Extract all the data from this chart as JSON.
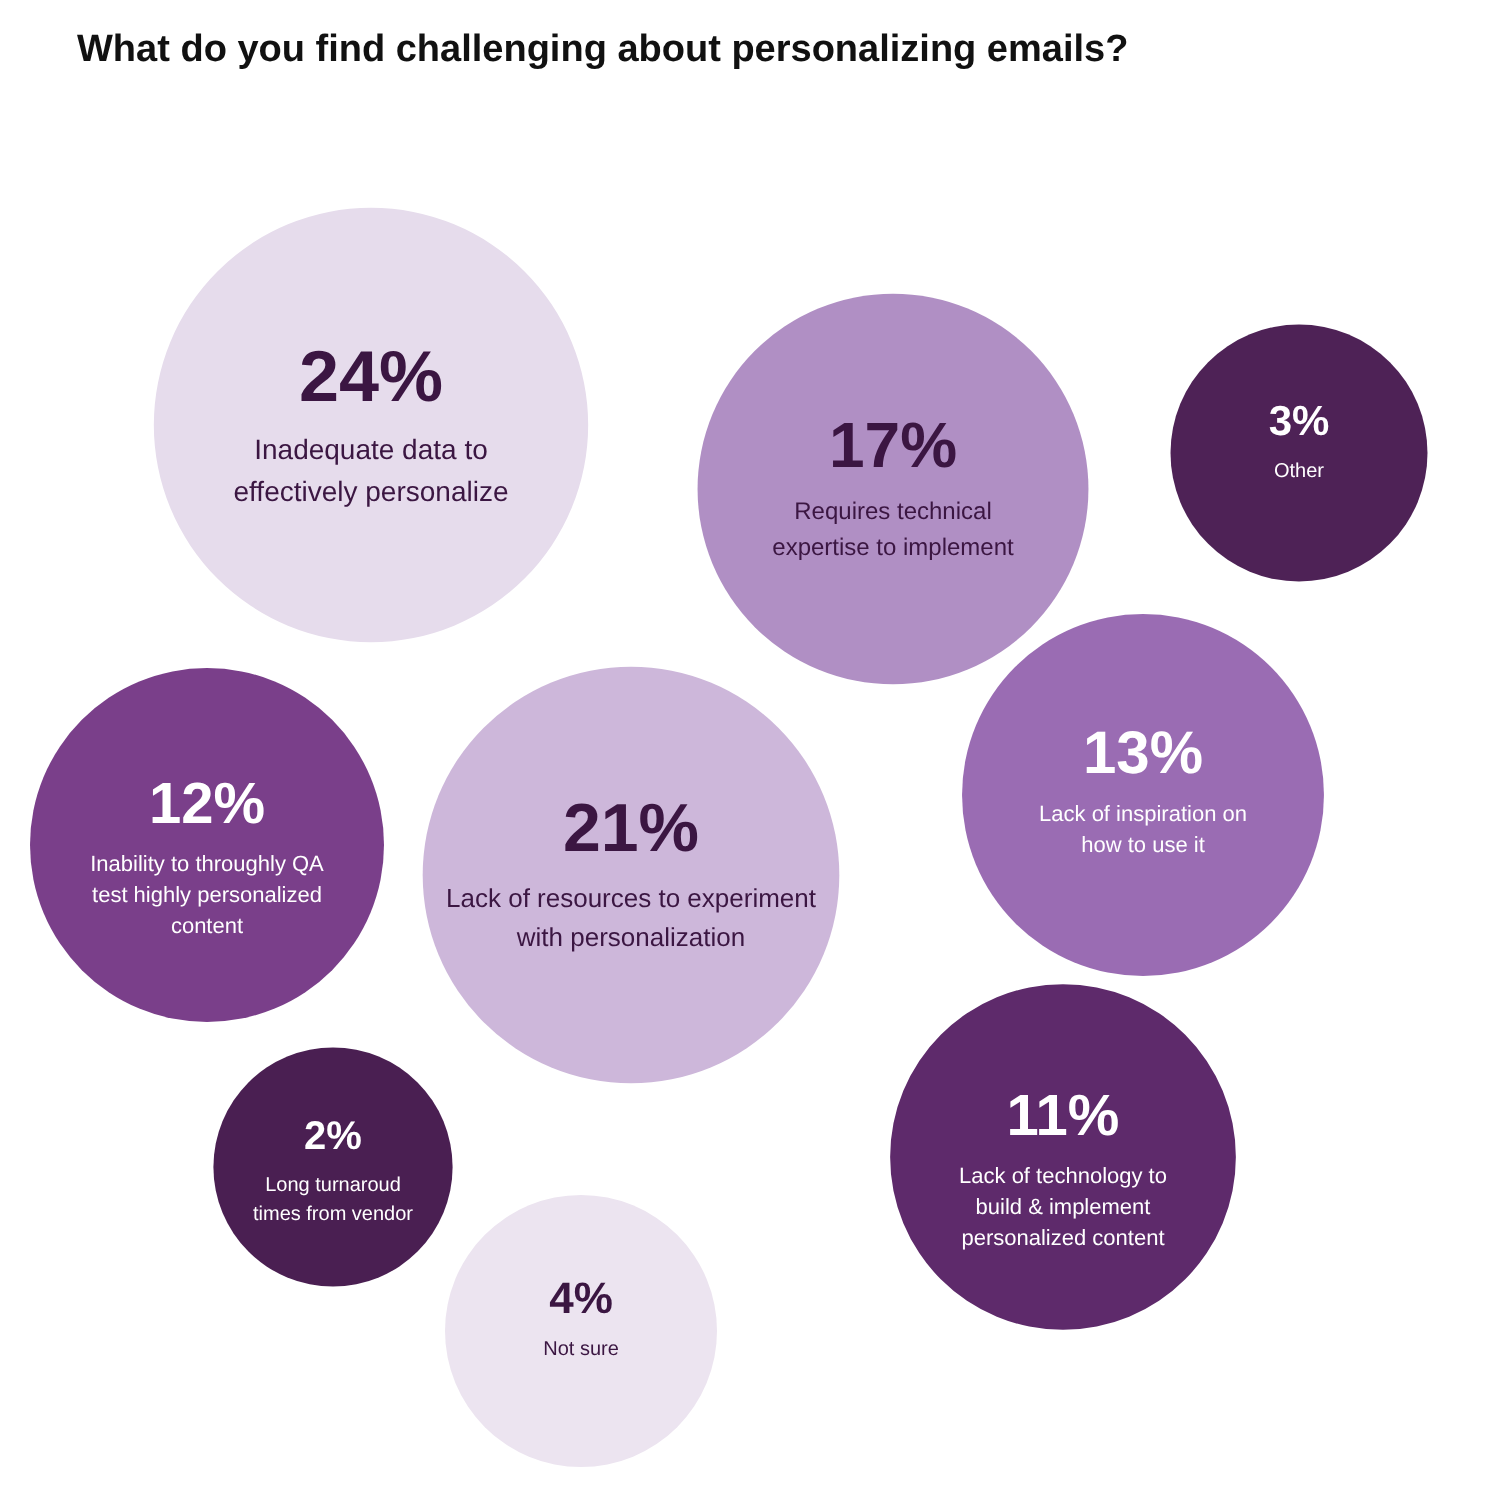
{
  "chart_data": {
    "type": "other",
    "title": "What do you find challenging about personalizing emails?",
    "categories": [
      "Inadequate data to\neffectively personalize",
      "Requires technical\nexpertise to implement",
      "Other",
      "Lack of inspiration on\nhow to use it",
      "Inability to throughly QA\ntest highly personalized\ncontent",
      "Lack of resources to experiment\nwith personalization",
      "Long turnaroud\ntimes from vendor",
      "Lack of technology to\nbuild & implement\npersonalized content",
      "Not sure"
    ],
    "values": [
      24,
      17,
      3,
      13,
      12,
      21,
      2,
      11,
      4
    ],
    "colors": [
      "#e6dcec",
      "#b08fc4",
      "#4e2256",
      "#9a6cb3",
      "#7a3f8a",
      "#cdb7da",
      "#4a1f52",
      "#5e2a6b",
      "#ece4f0"
    ],
    "value_labels": [
      "24%",
      "17%",
      "3%",
      "13%",
      "12%",
      "21%",
      "2%",
      "11%",
      "4%"
    ]
  }
}
